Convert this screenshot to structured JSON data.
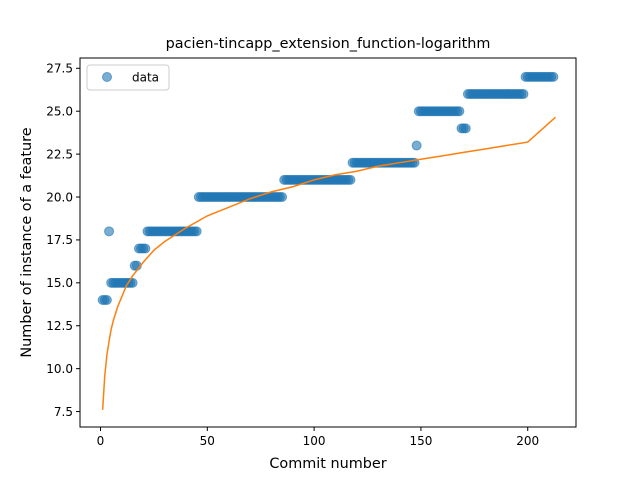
{
  "chart_data": {
    "type": "scatter",
    "title": "pacien-tincapp_extension_function-logarithm",
    "xlabel": "Commit number",
    "ylabel": "Number of instance of a feature",
    "xlim": [
      -9.6,
      222.6
    ],
    "ylim": [
      6.6,
      28.1
    ],
    "x_ticks": [
      0,
      50,
      100,
      150,
      200
    ],
    "y_ticks": [
      7.5,
      10.0,
      12.5,
      15.0,
      17.5,
      20.0,
      22.5,
      25.0,
      27.5
    ],
    "grid": false,
    "legend": {
      "position": "top-left",
      "entries": [
        "data"
      ]
    },
    "colors": {
      "data": "#1f77b4",
      "fit": "#ff7f0e"
    },
    "series": [
      {
        "name": "data",
        "kind": "scatter",
        "points": [
          [
            1,
            14
          ],
          [
            2,
            14
          ],
          [
            3,
            14
          ],
          [
            4,
            18
          ],
          [
            5,
            15
          ],
          [
            6,
            15
          ],
          [
            7,
            15
          ],
          [
            8,
            15
          ],
          [
            9,
            15
          ],
          [
            10,
            15
          ],
          [
            11,
            15
          ],
          [
            12,
            15
          ],
          [
            13,
            15
          ],
          [
            14,
            15
          ],
          [
            15,
            15
          ],
          [
            16,
            16
          ],
          [
            17,
            16
          ],
          [
            18,
            17
          ],
          [
            19,
            17
          ],
          [
            20,
            17
          ],
          [
            21,
            17
          ],
          [
            22,
            18
          ],
          [
            23,
            18
          ],
          [
            24,
            18
          ],
          [
            25,
            18
          ],
          [
            26,
            18
          ],
          [
            27,
            18
          ],
          [
            28,
            18
          ],
          [
            29,
            18
          ],
          [
            30,
            18
          ],
          [
            31,
            18
          ],
          [
            32,
            18
          ],
          [
            33,
            18
          ],
          [
            34,
            18
          ],
          [
            35,
            18
          ],
          [
            36,
            18
          ],
          [
            37,
            18
          ],
          [
            38,
            18
          ],
          [
            39,
            18
          ],
          [
            40,
            18
          ],
          [
            41,
            18
          ],
          [
            42,
            18
          ],
          [
            43,
            18
          ],
          [
            44,
            18
          ],
          [
            45,
            18
          ],
          [
            46,
            20
          ],
          [
            47,
            20
          ],
          [
            48,
            20
          ],
          [
            49,
            20
          ],
          [
            50,
            20
          ],
          [
            51,
            20
          ],
          [
            52,
            20
          ],
          [
            53,
            20
          ],
          [
            54,
            20
          ],
          [
            55,
            20
          ],
          [
            56,
            20
          ],
          [
            57,
            20
          ],
          [
            58,
            20
          ],
          [
            59,
            20
          ],
          [
            60,
            20
          ],
          [
            61,
            20
          ],
          [
            62,
            20
          ],
          [
            63,
            20
          ],
          [
            64,
            20
          ],
          [
            65,
            20
          ],
          [
            66,
            20
          ],
          [
            67,
            20
          ],
          [
            68,
            20
          ],
          [
            69,
            20
          ],
          [
            70,
            20
          ],
          [
            71,
            20
          ],
          [
            72,
            20
          ],
          [
            73,
            20
          ],
          [
            74,
            20
          ],
          [
            75,
            20
          ],
          [
            76,
            20
          ],
          [
            77,
            20
          ],
          [
            78,
            20
          ],
          [
            79,
            20
          ],
          [
            80,
            20
          ],
          [
            81,
            20
          ],
          [
            82,
            20
          ],
          [
            83,
            20
          ],
          [
            84,
            20
          ],
          [
            85,
            20
          ],
          [
            86,
            21
          ],
          [
            87,
            21
          ],
          [
            88,
            21
          ],
          [
            89,
            21
          ],
          [
            90,
            21
          ],
          [
            91,
            21
          ],
          [
            92,
            21
          ],
          [
            93,
            21
          ],
          [
            94,
            21
          ],
          [
            95,
            21
          ],
          [
            96,
            21
          ],
          [
            97,
            21
          ],
          [
            98,
            21
          ],
          [
            99,
            21
          ],
          [
            100,
            21
          ],
          [
            101,
            21
          ],
          [
            102,
            21
          ],
          [
            103,
            21
          ],
          [
            104,
            21
          ],
          [
            105,
            21
          ],
          [
            106,
            21
          ],
          [
            107,
            21
          ],
          [
            108,
            21
          ],
          [
            109,
            21
          ],
          [
            110,
            21
          ],
          [
            111,
            21
          ],
          [
            112,
            21
          ],
          [
            113,
            21
          ],
          [
            114,
            21
          ],
          [
            115,
            21
          ],
          [
            116,
            21
          ],
          [
            117,
            21
          ],
          [
            118,
            22
          ],
          [
            119,
            22
          ],
          [
            120,
            22
          ],
          [
            121,
            22
          ],
          [
            122,
            22
          ],
          [
            123,
            22
          ],
          [
            124,
            22
          ],
          [
            125,
            22
          ],
          [
            126,
            22
          ],
          [
            127,
            22
          ],
          [
            128,
            22
          ],
          [
            129,
            22
          ],
          [
            130,
            22
          ],
          [
            131,
            22
          ],
          [
            132,
            22
          ],
          [
            133,
            22
          ],
          [
            134,
            22
          ],
          [
            135,
            22
          ],
          [
            136,
            22
          ],
          [
            137,
            22
          ],
          [
            138,
            22
          ],
          [
            139,
            22
          ],
          [
            140,
            22
          ],
          [
            141,
            22
          ],
          [
            142,
            22
          ],
          [
            143,
            22
          ],
          [
            144,
            22
          ],
          [
            145,
            22
          ],
          [
            146,
            22
          ],
          [
            147,
            22
          ],
          [
            148,
            23
          ],
          [
            149,
            25
          ],
          [
            150,
            25
          ],
          [
            151,
            25
          ],
          [
            152,
            25
          ],
          [
            153,
            25
          ],
          [
            154,
            25
          ],
          [
            155,
            25
          ],
          [
            156,
            25
          ],
          [
            157,
            25
          ],
          [
            158,
            25
          ],
          [
            159,
            25
          ],
          [
            160,
            25
          ],
          [
            161,
            25
          ],
          [
            162,
            25
          ],
          [
            163,
            25
          ],
          [
            164,
            25
          ],
          [
            165,
            25
          ],
          [
            166,
            25
          ],
          [
            167,
            25
          ],
          [
            168,
            25
          ],
          [
            169,
            24
          ],
          [
            170,
            24
          ],
          [
            171,
            24
          ],
          [
            172,
            26
          ],
          [
            173,
            26
          ],
          [
            174,
            26
          ],
          [
            175,
            26
          ],
          [
            176,
            26
          ],
          [
            177,
            26
          ],
          [
            178,
            26
          ],
          [
            179,
            26
          ],
          [
            180,
            26
          ],
          [
            181,
            26
          ],
          [
            182,
            26
          ],
          [
            183,
            26
          ],
          [
            184,
            26
          ],
          [
            185,
            26
          ],
          [
            186,
            26
          ],
          [
            187,
            26
          ],
          [
            188,
            26
          ],
          [
            189,
            26
          ],
          [
            190,
            26
          ],
          [
            191,
            26
          ],
          [
            192,
            26
          ],
          [
            193,
            26
          ],
          [
            194,
            26
          ],
          [
            195,
            26
          ],
          [
            196,
            26
          ],
          [
            197,
            26
          ],
          [
            198,
            26
          ],
          [
            199,
            27
          ],
          [
            200,
            27
          ],
          [
            201,
            27
          ],
          [
            202,
            27
          ],
          [
            203,
            27
          ],
          [
            204,
            27
          ],
          [
            205,
            27
          ],
          [
            206,
            27
          ],
          [
            207,
            27
          ],
          [
            208,
            27
          ],
          [
            209,
            27
          ],
          [
            210,
            27
          ],
          [
            211,
            27
          ],
          [
            212,
            27
          ]
        ]
      },
      {
        "kind": "line",
        "x": [
          1,
          2,
          3,
          4,
          5,
          6,
          8,
          10,
          12,
          15,
          20,
          25,
          30,
          40,
          50,
          60,
          70,
          80,
          90,
          100,
          110,
          120,
          130,
          140,
          150,
          160,
          170,
          180,
          190,
          200,
          213
        ],
        "y": [
          7.6,
          9.6,
          10.8,
          11.6,
          12.3,
          12.8,
          13.6,
          14.2,
          14.8,
          15.4,
          16.2,
          16.9,
          17.4,
          18.2,
          18.9,
          19.4,
          19.9,
          20.3,
          20.6,
          21.0,
          21.3,
          21.5,
          21.8,
          22.0,
          22.2,
          22.4,
          22.6,
          22.8,
          23.0,
          23.2,
          24.65
        ]
      }
    ]
  }
}
